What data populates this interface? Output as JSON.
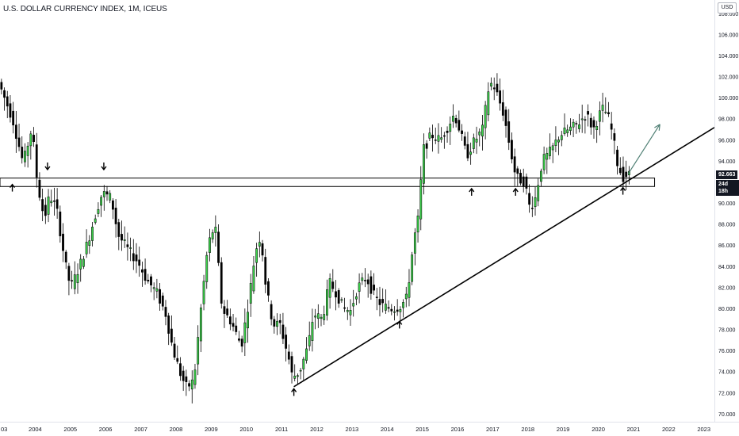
{
  "title": "U.S. DOLLAR CURRENCY INDEX, 1M, ICEUS",
  "currency": "USD",
  "price_badge": "92.663",
  "countdown_badge": "24d 18h",
  "colors": {
    "up": "#3bd04a",
    "down": "#000000",
    "line": "#000000",
    "arrow": "#4f7f74",
    "axis": "#131722"
  },
  "chart_data": {
    "type": "candlestick",
    "title": "U.S. DOLLAR CURRENCY INDEX, 1M, ICEUS",
    "xlabel": "",
    "ylabel": "",
    "ylim": [
      69.5,
      109.0
    ],
    "xlim": [
      2003.0,
      2023.3
    ],
    "y_ticks": [
      "108.000",
      "106.000",
      "104.000",
      "102.000",
      "100.000",
      "98.000",
      "96.000",
      "94.000",
      "92.000",
      "90.000",
      "88.000",
      "86.000",
      "84.000",
      "82.000",
      "80.000",
      "78.000",
      "76.000",
      "74.000",
      "72.000",
      "70.000"
    ],
    "x_ticks": [
      "03",
      "2004",
      "2005",
      "2006",
      "2007",
      "2008",
      "2009",
      "2010",
      "2011",
      "2012",
      "2013",
      "2014",
      "2015",
      "2016",
      "2017",
      "2018",
      "2019",
      "2020",
      "2021",
      "2022",
      "2023"
    ],
    "anchors": [
      [
        2003.0,
        101.5
      ],
      [
        2003.4,
        98.0
      ],
      [
        2003.7,
        93.8
      ],
      [
        2003.95,
        97.2
      ],
      [
        2004.1,
        92.0
      ],
      [
        2004.3,
        88.5
      ],
      [
        2004.45,
        90.8
      ],
      [
        2004.65,
        89.5
      ],
      [
        2004.9,
        84.2
      ],
      [
        2005.05,
        82.0
      ],
      [
        2005.3,
        84.0
      ],
      [
        2005.55,
        86.5
      ],
      [
        2005.8,
        89.5
      ],
      [
        2005.95,
        91.0
      ],
      [
        2006.2,
        90.5
      ],
      [
        2006.4,
        87.0
      ],
      [
        2006.7,
        85.5
      ],
      [
        2006.95,
        84.5
      ],
      [
        2007.2,
        82.8
      ],
      [
        2007.5,
        81.5
      ],
      [
        2007.75,
        79.5
      ],
      [
        2007.95,
        76.2
      ],
      [
        2008.2,
        73.5
      ],
      [
        2008.35,
        72.5
      ],
      [
        2008.55,
        73.2
      ],
      [
        2008.75,
        80.0
      ],
      [
        2008.95,
        86.0
      ],
      [
        2009.15,
        88.0
      ],
      [
        2009.35,
        80.0
      ],
      [
        2009.6,
        78.8
      ],
      [
        2009.9,
        76.5
      ],
      [
        2010.1,
        80.5
      ],
      [
        2010.3,
        85.5
      ],
      [
        2010.45,
        87.0
      ],
      [
        2010.6,
        82.0
      ],
      [
        2010.8,
        78.5
      ],
      [
        2011.0,
        78.5
      ],
      [
        2011.25,
        75.2
      ],
      [
        2011.35,
        73.5
      ],
      [
        2011.55,
        74.0
      ],
      [
        2011.8,
        76.5
      ],
      [
        2011.95,
        79.5
      ],
      [
        2012.2,
        79.0
      ],
      [
        2012.4,
        82.5
      ],
      [
        2012.6,
        81.5
      ],
      [
        2012.8,
        80.0
      ],
      [
        2013.0,
        79.8
      ],
      [
        2013.2,
        82.0
      ],
      [
        2013.45,
        83.0
      ],
      [
        2013.7,
        81.0
      ],
      [
        2013.95,
        80.2
      ],
      [
        2014.2,
        80.0
      ],
      [
        2014.4,
        80.2
      ],
      [
        2014.6,
        81.0
      ],
      [
        2014.8,
        86.5
      ],
      [
        2014.95,
        89.0
      ],
      [
        2015.05,
        95.0
      ],
      [
        2015.3,
        96.5
      ],
      [
        2015.55,
        96.0
      ],
      [
        2015.8,
        97.5
      ],
      [
        2015.95,
        98.5
      ],
      [
        2016.1,
        97.0
      ],
      [
        2016.3,
        94.5
      ],
      [
        2016.5,
        95.8
      ],
      [
        2016.75,
        97.0
      ],
      [
        2016.95,
        101.5
      ],
      [
        2017.1,
        101.0
      ],
      [
        2017.35,
        98.5
      ],
      [
        2017.55,
        95.0
      ],
      [
        2017.7,
        92.5
      ],
      [
        2017.95,
        92.0
      ],
      [
        2018.1,
        89.5
      ],
      [
        2018.25,
        90.5
      ],
      [
        2018.45,
        94.0
      ],
      [
        2018.7,
        95.0
      ],
      [
        2018.95,
        96.5
      ],
      [
        2019.2,
        97.0
      ],
      [
        2019.45,
        97.5
      ],
      [
        2019.7,
        98.5
      ],
      [
        2019.9,
        97.0
      ],
      [
        2020.15,
        99.0
      ],
      [
        2020.3,
        98.5
      ],
      [
        2020.45,
        96.5
      ],
      [
        2020.6,
        93.5
      ],
      [
        2020.75,
        92.5
      ],
      [
        2020.85,
        92.7
      ]
    ],
    "support_zone": [
      91.6,
      92.4
    ],
    "trendline": [
      [
        2011.35,
        72.6
      ],
      [
        2023.3,
        97.2
      ]
    ],
    "projection_arrow": [
      [
        2020.85,
        92.8
      ],
      [
        2021.75,
        97.5
      ]
    ],
    "markers": [
      {
        "x": 2003.35,
        "y": 91.8,
        "dir": "up"
      },
      {
        "x": 2004.35,
        "y": 93.2,
        "dir": "down"
      },
      {
        "x": 2005.95,
        "y": 93.2,
        "dir": "down"
      },
      {
        "x": 2011.35,
        "y": 72.4,
        "dir": "up"
      },
      {
        "x": 2014.35,
        "y": 78.8,
        "dir": "up"
      },
      {
        "x": 2016.4,
        "y": 91.4,
        "dir": "up"
      },
      {
        "x": 2017.65,
        "y": 91.4,
        "dir": "up"
      },
      {
        "x": 2020.7,
        "y": 91.5,
        "dir": "up"
      }
    ]
  }
}
